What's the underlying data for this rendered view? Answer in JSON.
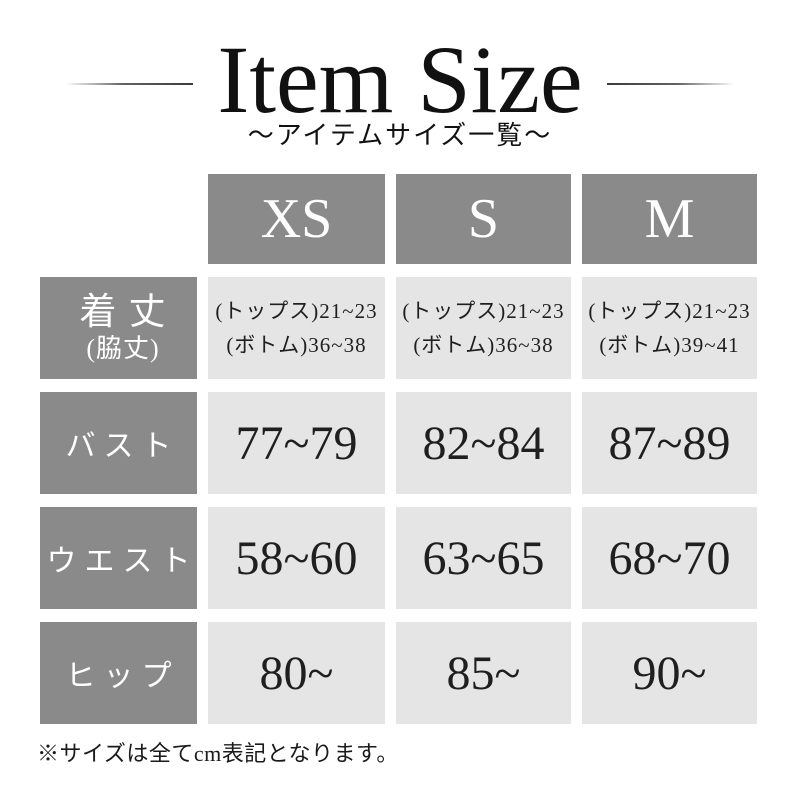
{
  "colors": {
    "page_bg": "#ffffff",
    "table_gray": "#8a8a8a",
    "cell_bg": "#e5e5e5",
    "header_text": "#ffffff",
    "cell_text": "#1f1f1f",
    "title_text": "#111111",
    "note_text": "#1a1a1a",
    "line_dark": "#3c3c3c"
  },
  "chart_data": {
    "type": "table",
    "title": "Item Size",
    "subtitle": "〜アイテムサイズ一覧〜",
    "columns": [
      "XS",
      "S",
      "M"
    ],
    "rows": [
      {
        "label": "着丈",
        "label_sub": "(脇丈)",
        "values": [
          [
            "(トップス)21~23",
            "(ボトム)36~38"
          ],
          [
            "(トップス)21~23",
            "(ボトム)36~38"
          ],
          [
            "(トップス)21~23",
            "(ボトム)39~41"
          ]
        ]
      },
      {
        "label": "バスト",
        "values": [
          "77~79",
          "82~84",
          "87~89"
        ]
      },
      {
        "label": "ウエスト",
        "values": [
          "58~60",
          "63~65",
          "68~70"
        ]
      },
      {
        "label": "ヒップ",
        "values": [
          "80~",
          "85~",
          "90~"
        ]
      }
    ],
    "footnote": "※サイズは全てcm表記となります。"
  }
}
